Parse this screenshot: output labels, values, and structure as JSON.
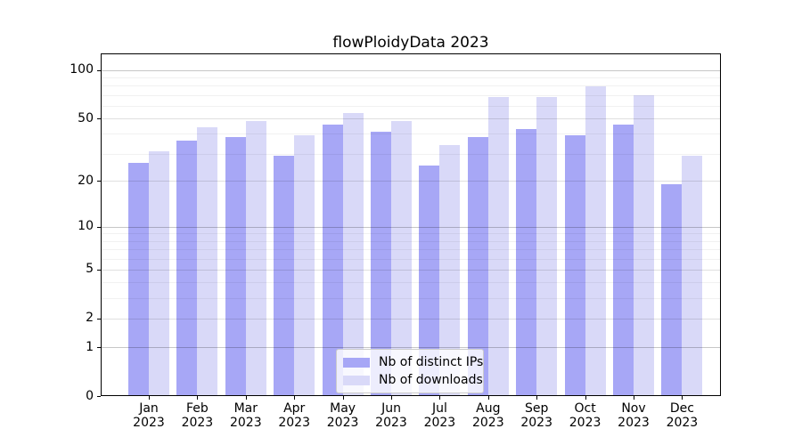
{
  "chart_data": {
    "type": "bar",
    "title": "flowPloidyData 2023",
    "scale": "log1p",
    "categories": [
      "Jan",
      "Feb",
      "Mar",
      "Apr",
      "May",
      "Jun",
      "Jul",
      "Aug",
      "Sep",
      "Oct",
      "Nov",
      "Dec"
    ],
    "year": "2023",
    "series": [
      {
        "name": "Nb of distinct IPs",
        "key": "distinct-ips",
        "color": "#a7a7f6",
        "values": [
          26,
          36,
          38,
          29,
          46,
          41,
          25,
          38,
          43,
          39,
          46,
          19
        ]
      },
      {
        "name": "Nb of downloads",
        "key": "downloads",
        "color": "#d9d9f8",
        "values": [
          31,
          44,
          48,
          39,
          54,
          48,
          34,
          68,
          68,
          79,
          70,
          29
        ]
      }
    ],
    "y_ticks": [
      0,
      1,
      2,
      5,
      10,
      20,
      50,
      100
    ],
    "ylim": [
      0,
      127
    ],
    "grid": {
      "strong": [
        1,
        10,
        100
      ],
      "medium": [
        2,
        5,
        20,
        50
      ],
      "minor": [
        3,
        4,
        6,
        7,
        8,
        9,
        30,
        40,
        60,
        70,
        80,
        90
      ]
    },
    "legend_position": "lower center",
    "grid_on": true
  }
}
